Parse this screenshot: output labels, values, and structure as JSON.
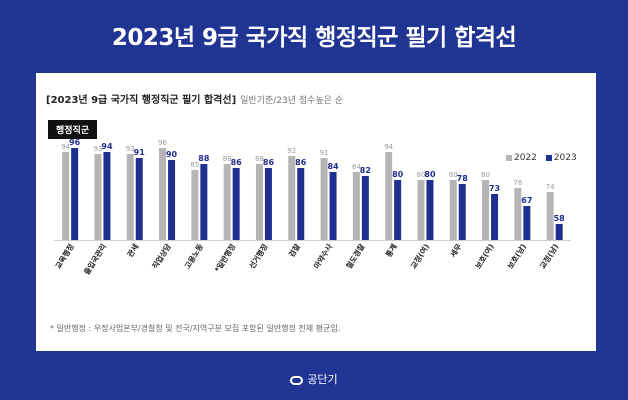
{
  "page_title": "2023년 9급 국가직 행정직군 필기 합격선",
  "panel": {
    "title": "[2023년 9급 국가직 행정직군 필기 합격선]",
    "subtitle": "일반기준/23년 점수높은 순",
    "group_tag": "행정직군",
    "footnote": "* 일반행정 : 우정사업본부/경찰청 및 전국/지역구분 모집 포함된 일반행정 전체 평균임."
  },
  "brand": {
    "name": "공단기",
    "logo_icon": "cloud-logo-icon"
  },
  "colors": {
    "background": "#1f3493",
    "bar_2022": "#b5b5b5",
    "bar_2023": "#1f2f8f"
  },
  "chart_data": {
    "type": "bar",
    "categories": [
      "교육행정",
      "출입국관리",
      "관세",
      "직업상담",
      "고용노동",
      "*일반행정",
      "선거행정",
      "검찰",
      "마약수사",
      "철도경찰",
      "통계",
      "교정(여)",
      "세무",
      "보호(여)",
      "보호(남)",
      "교정(남)"
    ],
    "series": [
      {
        "name": "2022",
        "values": [
          94,
          93,
          93,
          96,
          85,
          88,
          88,
          92,
          91,
          84,
          94,
          80,
          80,
          80,
          76,
          74
        ]
      },
      {
        "name": "2023",
        "values": [
          96,
          94,
          91,
          90,
          88,
          86,
          86,
          86,
          84,
          82,
          80,
          80,
          78,
          73,
          67,
          58
        ]
      }
    ],
    "legend_position": "top-right",
    "grid": false
  }
}
